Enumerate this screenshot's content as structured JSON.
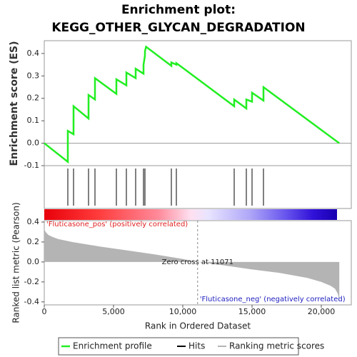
{
  "chart_data": [
    {
      "type": "line",
      "title": "Enrichment plot:",
      "subtitle": "KEGG_OTHER_GLYCAN_DEGRADATION",
      "ylabel": "Enrichment score (ES)",
      "xlim": [
        0,
        22165
      ],
      "ylim": [
        -0.1,
        0.457
      ],
      "yticks": [
        -0.1,
        {
          "value": 0,
          "label": "0.0"
        },
        0.1,
        0.2,
        0.3,
        0.4
      ],
      "series": [
        {
          "name": "Enrichment profile",
          "color": "#22ee22",
          "x": [
            0,
            1700,
            1701,
            2113,
            2114,
            3196,
            3197,
            3660,
            3661,
            5206,
            5207,
            5928,
            5929,
            6598,
            6599,
            7165,
            7166,
            7268,
            7269,
            7350,
            9175,
            9176,
            9536,
            9537,
            13711,
            13712,
            14588,
            14589,
            15000,
            15001,
            15825,
            15826,
            21300
          ],
          "values": [
            0,
            -0.083,
            0.055,
            0.04,
            0.165,
            0.11,
            0.215,
            0.195,
            0.29,
            0.22,
            0.285,
            0.258,
            0.315,
            0.29,
            0.332,
            0.31,
            0.35,
            0.39,
            0.41,
            0.43,
            0.345,
            0.36,
            0.35,
            0.357,
            0.165,
            0.195,
            0.155,
            0.195,
            0.185,
            0.225,
            0.19,
            0.25,
            0.0
          ]
        }
      ]
    },
    {
      "type": "rug",
      "xlim": [
        0,
        22165
      ],
      "series": [
        {
          "name": "Hits",
          "color": "#000000",
          "x": [
            1701,
            2113,
            3196,
            3660,
            5206,
            5928,
            6598,
            7165,
            7268,
            9175,
            9536,
            13711,
            14588,
            15000,
            15825
          ]
        }
      ]
    },
    {
      "type": "area",
      "xlabel": "Rank in Ordered Dataset",
      "ylabel": "Ranked list metric (Pearson)",
      "xlim": [
        0,
        22165
      ],
      "ylim": [
        -0.43,
        0.414
      ],
      "xticks": [
        0,
        {
          "value": 5000,
          "label": "5,000"
        },
        {
          "value": 10000,
          "label": "10,000"
        },
        {
          "value": 15000,
          "label": "15,000"
        },
        {
          "value": 20000,
          "label": "20,000"
        }
      ],
      "yticks": [
        -0.4,
        -0.2,
        {
          "value": 0,
          "label": "0.0"
        },
        0.2,
        0.4
      ],
      "zero_cross": 11071,
      "annotations": [
        "'Fluticasone_pos' (positively correlated)",
        "Zero cross at 11071",
        "'Fluticasone_neg' (negatively correlated)"
      ],
      "series": [
        {
          "name": "Ranking metric scores",
          "color": "#b4b4b4",
          "x": [
            0,
            100,
            300,
            600,
            1000,
            2000,
            4000,
            6000,
            8000,
            10000,
            11071,
            13000,
            15000,
            17000,
            19000,
            20000,
            20700,
            21000,
            21200,
            21300
          ],
          "values": [
            0.33,
            0.3,
            0.27,
            0.25,
            0.23,
            0.2,
            0.155,
            0.115,
            0.075,
            0.03,
            0,
            -0.035,
            -0.075,
            -0.11,
            -0.16,
            -0.2,
            -0.24,
            -0.27,
            -0.32,
            -0.4
          ]
        }
      ]
    }
  ]
}
